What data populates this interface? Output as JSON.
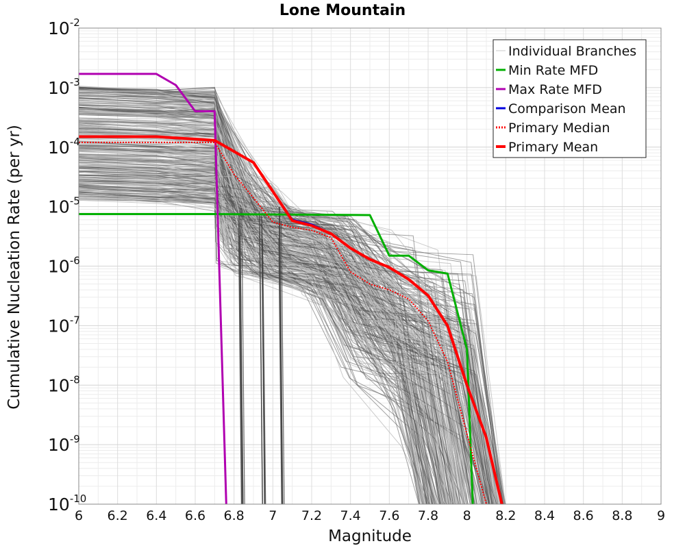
{
  "chart_data": {
    "type": "line",
    "title": "Lone Mountain",
    "xlabel": "Magnitude",
    "ylabel": "Cumulative Nucleation Rate (per yr)",
    "xlim": [
      6,
      9
    ],
    "ylim": [
      1e-10,
      0.01
    ],
    "y_scale": "log",
    "grid": true,
    "legend_position": "top-right",
    "x_ticks": [
      "6",
      "6.2",
      "6.4",
      "6.6",
      "6.8",
      "7",
      "7.2",
      "7.4",
      "7.6",
      "7.8",
      "8",
      "8.2",
      "8.4",
      "8.6",
      "8.8",
      "9"
    ],
    "y_ticks": [
      {
        "base": "10",
        "exp": "-2"
      },
      {
        "base": "10",
        "exp": "-3"
      },
      {
        "base": "10",
        "exp": "-4"
      },
      {
        "base": "10",
        "exp": "-5"
      },
      {
        "base": "10",
        "exp": "-6"
      },
      {
        "base": "10",
        "exp": "-7"
      },
      {
        "base": "10",
        "exp": "-8"
      },
      {
        "base": "10",
        "exp": "-9"
      },
      {
        "base": "10",
        "exp": "-10"
      }
    ],
    "legend": [
      {
        "label": "Individual Branches",
        "color": "#c8c8c8",
        "style": "solid"
      },
      {
        "label": "Min Rate MFD",
        "color": "#00b000",
        "style": "solid"
      },
      {
        "label": "Max Rate MFD",
        "color": "#b000b0",
        "style": "solid"
      },
      {
        "label": "Comparison Mean",
        "color": "#0000e0",
        "style": "solid"
      },
      {
        "label": "Primary Median",
        "color": "#ff0000",
        "style": "dotted"
      },
      {
        "label": "Primary Mean",
        "color": "#ff0000",
        "style": "solid"
      }
    ],
    "series": [
      {
        "name": "Min Rate MFD",
        "color": "#00b000",
        "width": 3,
        "x": [
          6.0,
          6.7,
          7.5,
          7.6,
          7.7,
          7.8,
          7.9,
          8.0,
          8.03,
          8.03
        ],
        "y": [
          7.5e-06,
          7.5e-06,
          7.2e-06,
          1.5e-06,
          1.5e-06,
          8.5e-07,
          7.5e-07,
          4e-08,
          1e-10,
          1e-10
        ]
      },
      {
        "name": "Max Rate MFD",
        "color": "#b000b0",
        "width": 3,
        "x": [
          6.0,
          6.4,
          6.5,
          6.6,
          6.7,
          6.76
        ],
        "y": [
          0.0017,
          0.0017,
          0.0011,
          0.0004,
          0.0004,
          1e-10
        ]
      },
      {
        "name": "Comparison Mean",
        "color": "#0000e0",
        "width": 3,
        "x": [
          6.0,
          6.4,
          6.7,
          6.9,
          7.0,
          7.1,
          7.2,
          7.3,
          7.4,
          7.5,
          7.6,
          7.7,
          7.8,
          7.9,
          8.0,
          8.1,
          8.18
        ],
        "y": [
          0.00015,
          0.00015,
          0.00013,
          5.5e-05,
          1.8e-05,
          6e-06,
          5e-06,
          3.5e-06,
          2e-06,
          1.3e-06,
          9.5e-07,
          6e-07,
          3.2e-07,
          1e-07,
          1e-08,
          1.3e-09,
          1e-10
        ]
      },
      {
        "name": "Primary Median",
        "color": "#ff0000",
        "width": 2,
        "style": "dotted",
        "x": [
          6.0,
          6.4,
          6.7,
          6.8,
          6.9,
          7.0,
          7.1,
          7.2,
          7.3,
          7.4,
          7.5,
          7.6,
          7.7,
          7.8,
          7.9,
          8.0,
          8.1
        ],
        "y": [
          0.00012,
          0.00012,
          0.00012,
          3.5e-05,
          1.4e-05,
          5.5e-06,
          4.5e-06,
          4e-06,
          3e-06,
          8e-07,
          5e-07,
          4e-07,
          2.8e-07,
          1.2e-07,
          2.5e-08,
          1.5e-09,
          1e-10
        ]
      },
      {
        "name": "Primary Mean",
        "color": "#ff0000",
        "width": 4,
        "x": [
          6.0,
          6.4,
          6.7,
          6.9,
          7.0,
          7.1,
          7.2,
          7.3,
          7.4,
          7.5,
          7.6,
          7.7,
          7.8,
          7.9,
          8.0,
          8.1,
          8.18
        ],
        "y": [
          0.00015,
          0.00015,
          0.00013,
          5.5e-05,
          1.8e-05,
          5.8e-06,
          4.8e-06,
          3.5e-06,
          2e-06,
          1.3e-06,
          9.5e-07,
          6e-07,
          3.2e-07,
          1e-07,
          1e-08,
          1.3e-09,
          1e-10
        ]
      }
    ]
  }
}
